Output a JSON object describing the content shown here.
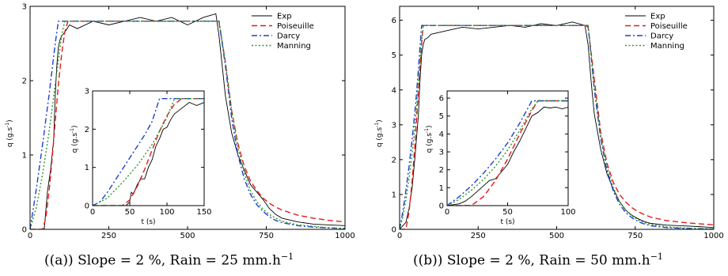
{
  "chart_data": [
    {
      "type": "line",
      "caption": "((a)) Slope = 2 %, Rain = 25 mm.h",
      "caption_exp": "−1",
      "xlabel": "",
      "ylabel": "q (g.s",
      "ylabel_exp": "-1",
      "ylabel_close": ")",
      "xlim": [
        0,
        1000
      ],
      "ylim": [
        0,
        3
      ],
      "xticks": [
        "0",
        "250",
        "500",
        "750",
        "1000"
      ],
      "yticks": [
        "0",
        "1",
        "2",
        "3"
      ],
      "legend_position": "top-right",
      "series": [
        {
          "name": "Exp",
          "color": "#000000",
          "dash": "solid",
          "x": [
            0,
            45,
            55,
            65,
            75,
            80,
            85,
            90,
            95,
            100,
            110,
            125,
            150,
            200,
            250,
            300,
            350,
            400,
            450,
            500,
            550,
            590,
            600,
            610,
            620,
            640,
            660,
            680,
            700,
            720,
            740,
            760,
            780,
            800,
            850,
            900,
            950,
            1000
          ],
          "y": [
            0,
            0,
            0.5,
            0.8,
            1.2,
            1.8,
            2.2,
            2.45,
            2.55,
            2.6,
            2.65,
            2.75,
            2.7,
            2.8,
            2.75,
            2.8,
            2.85,
            2.8,
            2.85,
            2.75,
            2.85,
            2.9,
            2.6,
            2.2,
            1.8,
            1.3,
            1.0,
            0.8,
            0.6,
            0.5,
            0.4,
            0.28,
            0.2,
            0.15,
            0.1,
            0.07,
            0.06,
            0.05
          ]
        },
        {
          "name": "Poiseuille",
          "color": "#e41a1c",
          "dash": "dashed",
          "x": [
            0,
            40,
            50,
            60,
            70,
            80,
            90,
            100,
            110,
            120,
            590,
            600,
            620,
            640,
            660,
            680,
            700,
            720,
            740,
            760,
            780,
            800,
            850,
            900,
            950,
            1000
          ],
          "y": [
            0,
            0,
            0.15,
            0.5,
            0.95,
            1.45,
            1.95,
            2.35,
            2.65,
            2.8,
            2.8,
            2.78,
            2.25,
            1.6,
            1.15,
            0.85,
            0.65,
            0.52,
            0.42,
            0.35,
            0.3,
            0.26,
            0.19,
            0.15,
            0.12,
            0.1
          ]
        },
        {
          "name": "Darcy",
          "color": "#1f3fd0",
          "dash": "dashdot",
          "x": [
            0,
            20,
            40,
            60,
            80,
            90,
            600,
            620,
            640,
            660,
            680,
            700,
            720,
            740,
            760,
            780,
            800,
            850,
            900,
            950,
            1000
          ],
          "y": [
            0,
            0.55,
            1.15,
            1.8,
            2.5,
            2.8,
            2.8,
            2.2,
            1.5,
            1.0,
            0.68,
            0.47,
            0.33,
            0.24,
            0.17,
            0.12,
            0.09,
            0.05,
            0.03,
            0.02,
            0.01
          ]
        },
        {
          "name": "Manning",
          "color": "#2a9a2a",
          "dash": "dotted",
          "x": [
            0,
            20,
            40,
            60,
            80,
            100,
            110,
            600,
            620,
            640,
            660,
            680,
            700,
            720,
            740,
            760,
            780,
            800,
            850,
            900,
            950,
            1000
          ],
          "y": [
            0,
            0.3,
            0.75,
            1.3,
            1.95,
            2.6,
            2.8,
            2.8,
            2.25,
            1.6,
            1.1,
            0.76,
            0.52,
            0.37,
            0.27,
            0.2,
            0.15,
            0.11,
            0.06,
            0.04,
            0.02,
            0.01
          ]
        }
      ],
      "inset": {
        "xlim": [
          0,
          150
        ],
        "ylim": [
          0,
          3
        ],
        "xticks": [
          "0",
          "50",
          "100",
          "150"
        ],
        "yticks": [
          "0",
          "1",
          "2",
          "3"
        ],
        "xlabel": "t (s)",
        "series": [
          {
            "name": "Exp",
            "x": [
              0,
              45,
              50,
              52,
              55,
              60,
              65,
              70,
              75,
              80,
              85,
              90,
              95,
              100,
              105,
              110,
              120,
              130,
              140,
              150
            ],
            "y": [
              0,
              0,
              0.1,
              0.35,
              0.3,
              0.55,
              0.7,
              0.7,
              1.0,
              1.2,
              1.55,
              1.75,
              2.0,
              2.05,
              2.25,
              2.4,
              2.55,
              2.7,
              2.62,
              2.7
            ]
          },
          {
            "name": "Poiseuille",
            "x": [
              0,
              40,
              50,
              60,
              70,
              80,
              90,
              100,
              110,
              120,
              150
            ],
            "y": [
              0,
              0,
              0.15,
              0.5,
              0.95,
              1.45,
              1.95,
              2.35,
              2.65,
              2.8,
              2.8
            ]
          },
          {
            "name": "Darcy",
            "x": [
              0,
              10,
              20,
              30,
              40,
              50,
              60,
              70,
              80,
              90,
              150
            ],
            "y": [
              0,
              0.1,
              0.35,
              0.65,
              0.95,
              1.25,
              1.55,
              1.85,
              2.2,
              2.8,
              2.8
            ]
          },
          {
            "name": "Manning",
            "x": [
              0,
              20,
              40,
              60,
              80,
              100,
              110,
              150
            ],
            "y": [
              0,
              0.2,
              0.6,
              1.05,
              1.6,
              2.3,
              2.8,
              2.8
            ]
          }
        ]
      }
    },
    {
      "type": "line",
      "caption": "((b)) Slope = 2 %, Rain = 50 mm.h",
      "caption_exp": "−1",
      "xlabel": "",
      "ylabel": "q (g.s",
      "ylabel_exp": "-1",
      "ylabel_close": ")",
      "xlim": [
        0,
        1000
      ],
      "ylim": [
        0,
        6.4
      ],
      "xticks": [
        "0",
        "250",
        "500",
        "750",
        "1000"
      ],
      "yticks": [
        "0",
        "1",
        "2",
        "3",
        "4",
        "5",
        "6"
      ],
      "legend_position": "top-right",
      "series": [
        {
          "name": "Exp",
          "color": "#000000",
          "dash": "solid",
          "x": [
            0,
            20,
            30,
            40,
            50,
            60,
            65,
            70,
            75,
            80,
            90,
            100,
            150,
            200,
            250,
            300,
            350,
            400,
            450,
            500,
            550,
            590,
            600,
            610,
            620,
            640,
            660,
            680,
            700,
            720,
            740,
            760,
            780,
            800,
            850,
            900,
            950,
            1000
          ],
          "y": [
            0,
            0.2,
            0.6,
            1.2,
            2.2,
            3.3,
            4.3,
            5.0,
            5.3,
            5.45,
            5.5,
            5.6,
            5.7,
            5.8,
            5.75,
            5.8,
            5.85,
            5.8,
            5.9,
            5.85,
            5.95,
            5.85,
            5.3,
            4.2,
            3.3,
            2.3,
            1.6,
            1.15,
            0.8,
            0.55,
            0.4,
            0.3,
            0.22,
            0.17,
            0.12,
            0.1,
            0.08,
            0.05
          ]
        },
        {
          "name": "Poiseuille",
          "color": "#e41a1c",
          "dash": "dashed",
          "x": [
            0,
            20,
            30,
            40,
            50,
            60,
            70,
            75,
            590,
            600,
            620,
            640,
            660,
            680,
            700,
            720,
            740,
            760,
            780,
            800,
            850,
            900,
            950,
            1000
          ],
          "y": [
            0,
            0,
            0.5,
            1.4,
            2.6,
            4.0,
            5.3,
            5.85,
            5.85,
            5.8,
            4.3,
            2.8,
            1.9,
            1.35,
            1.0,
            0.78,
            0.62,
            0.5,
            0.42,
            0.35,
            0.25,
            0.2,
            0.16,
            0.13
          ]
        },
        {
          "name": "Darcy",
          "color": "#1f3fd0",
          "dash": "dashdot",
          "x": [
            0,
            10,
            20,
            30,
            40,
            50,
            60,
            70,
            600,
            620,
            640,
            660,
            680,
            700,
            720,
            740,
            760,
            780,
            800,
            850,
            900,
            950,
            1000
          ],
          "y": [
            0,
            0.5,
            1.1,
            1.8,
            2.6,
            3.5,
            4.6,
            5.85,
            5.85,
            4.0,
            2.6,
            1.7,
            1.1,
            0.72,
            0.48,
            0.33,
            0.22,
            0.15,
            0.1,
            0.05,
            0.03,
            0.02,
            0.01
          ]
        },
        {
          "name": "Manning",
          "color": "#2a9a2a",
          "dash": "dotted",
          "x": [
            0,
            10,
            20,
            30,
            40,
            50,
            60,
            70,
            75,
            600,
            620,
            640,
            660,
            680,
            700,
            720,
            740,
            760,
            780,
            800,
            850,
            900,
            950,
            1000
          ],
          "y": [
            0,
            0.35,
            0.85,
            1.45,
            2.2,
            3.1,
            4.2,
            5.4,
            5.85,
            5.85,
            4.1,
            2.7,
            1.8,
            1.2,
            0.8,
            0.55,
            0.38,
            0.27,
            0.19,
            0.14,
            0.07,
            0.04,
            0.02,
            0.01
          ]
        }
      ],
      "inset": {
        "xlim": [
          0,
          100
        ],
        "ylim": [
          0,
          6.4
        ],
        "xticks": [
          "0",
          "50",
          "100"
        ],
        "yticks": [
          "0",
          "1",
          "2",
          "3",
          "4",
          "5",
          "6"
        ],
        "xlabel": "t (s)",
        "series": [
          {
            "name": "Exp",
            "x": [
              0,
              10,
              15,
              20,
              25,
              30,
              35,
              40,
              45,
              50,
              55,
              60,
              65,
              70,
              75,
              80,
              85,
              90,
              95,
              100
            ],
            "y": [
              0,
              0.1,
              0.25,
              0.5,
              0.8,
              1.1,
              1.4,
              1.5,
              1.9,
              2.3,
              3.0,
              3.6,
              4.3,
              5.0,
              5.2,
              5.5,
              5.45,
              5.5,
              5.4,
              5.5
            ]
          },
          {
            "name": "Poiseuille",
            "x": [
              0,
              20,
              30,
              40,
              50,
              60,
              70,
              75,
              100
            ],
            "y": [
              0,
              0,
              0.5,
              1.4,
              2.6,
              4.0,
              5.3,
              5.85,
              5.85
            ]
          },
          {
            "name": "Darcy",
            "x": [
              0,
              10,
              20,
              30,
              40,
              50,
              60,
              70,
              100
            ],
            "y": [
              0,
              0.5,
              1.1,
              1.8,
              2.6,
              3.5,
              4.6,
              5.85,
              5.85
            ]
          },
          {
            "name": "Manning",
            "x": [
              0,
              10,
              20,
              30,
              40,
              50,
              60,
              70,
              75,
              100
            ],
            "y": [
              0,
              0.35,
              0.85,
              1.45,
              2.2,
              3.1,
              4.2,
              5.4,
              5.85,
              5.85
            ]
          }
        ]
      }
    }
  ]
}
